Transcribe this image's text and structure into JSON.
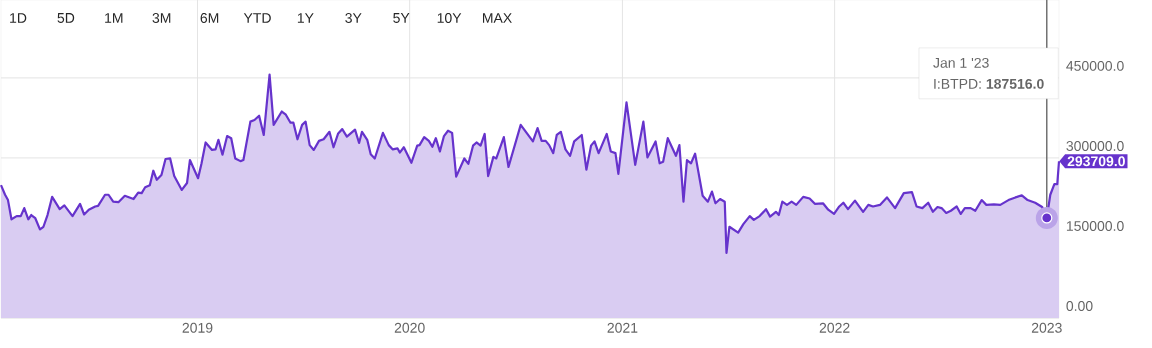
{
  "chart_data": {
    "type": "area",
    "x": [
      "2018-01-28",
      "2018-02-04",
      "2018-02-09",
      "2018-02-15",
      "2018-02-24",
      "2018-03-03",
      "2018-03-09",
      "2018-03-16",
      "2018-03-21",
      "2018-03-28",
      "2018-04-05",
      "2018-04-11",
      "2018-04-18",
      "2018-04-26",
      "2018-05-09",
      "2018-05-17",
      "2018-05-31",
      "2018-06-13",
      "2018-06-20",
      "2018-06-28",
      "2018-07-09",
      "2018-07-14",
      "2018-07-26",
      "2018-08-01",
      "2018-08-09",
      "2018-08-18",
      "2018-08-29",
      "2018-09-13",
      "2018-09-21",
      "2018-09-27",
      "2018-10-03",
      "2018-10-11",
      "2018-10-17",
      "2018-10-23",
      "2018-10-31",
      "2018-11-07",
      "2018-11-15",
      "2018-11-22",
      "2018-12-05",
      "2018-12-14",
      "2018-12-19",
      "2019-01-02",
      "2019-01-08",
      "2019-01-15",
      "2019-01-26",
      "2019-02-01",
      "2019-02-06",
      "2019-02-13",
      "2019-02-21",
      "2019-02-28",
      "2019-03-07",
      "2019-03-16",
      "2019-03-21",
      "2019-04-02",
      "2019-04-09",
      "2019-04-17",
      "2019-04-25",
      "2019-05-05",
      "2019-05-12",
      "2019-05-26",
      "2019-06-02",
      "2019-06-10",
      "2019-06-15",
      "2019-06-22",
      "2019-06-30",
      "2019-07-06",
      "2019-07-13",
      "2019-07-20",
      "2019-07-29",
      "2019-08-06",
      "2019-08-16",
      "2019-08-23",
      "2019-08-31",
      "2019-09-07",
      "2019-09-15",
      "2019-09-29",
      "2019-10-06",
      "2019-10-11",
      "2019-10-20",
      "2019-10-26",
      "2019-11-02",
      "2019-11-16",
      "2019-11-26",
      "2019-12-03",
      "2019-12-11",
      "2019-12-15",
      "2019-12-22",
      "2020-01-04",
      "2020-01-14",
      "2020-01-18",
      "2020-01-26",
      "2020-02-03",
      "2020-02-09",
      "2020-02-15",
      "2020-02-22",
      "2020-02-29",
      "2020-03-07",
      "2020-03-14",
      "2020-03-21",
      "2020-04-04",
      "2020-04-11",
      "2020-04-19",
      "2020-04-25",
      "2020-05-02",
      "2020-05-09",
      "2020-05-15",
      "2020-05-24",
      "2020-05-29",
      "2020-06-11",
      "2020-06-19",
      "2020-07-10",
      "2020-07-31",
      "2020-08-08",
      "2020-08-15",
      "2020-08-22",
      "2020-08-28",
      "2020-09-04",
      "2020-09-10",
      "2020-09-17",
      "2020-09-25",
      "2020-10-03",
      "2020-10-10",
      "2020-10-23",
      "2020-10-31",
      "2020-11-08",
      "2020-11-14",
      "2020-11-21",
      "2020-12-05",
      "2020-12-12",
      "2020-12-20",
      "2020-12-25",
      "2021-01-08",
      "2021-01-23",
      "2021-02-06",
      "2021-02-13",
      "2021-02-27",
      "2021-03-06",
      "2021-03-12",
      "2021-03-20",
      "2021-04-03",
      "2021-04-09",
      "2021-04-16",
      "2021-04-22",
      "2021-04-29",
      "2021-05-06",
      "2021-05-19",
      "2021-05-28",
      "2021-06-04",
      "2021-06-10",
      "2021-06-18",
      "2021-06-26",
      "2021-06-29",
      "2021-07-04",
      "2021-07-19",
      "2021-07-28",
      "2021-08-08",
      "2021-08-15",
      "2021-08-25",
      "2021-09-05",
      "2021-09-12",
      "2021-09-22",
      "2021-09-27",
      "2021-10-03",
      "2021-10-11",
      "2021-10-19",
      "2021-10-27",
      "2021-11-08",
      "2021-11-19",
      "2021-11-28",
      "2021-12-12",
      "2021-12-21",
      "2021-12-31",
      "2022-01-09",
      "2022-01-16",
      "2022-01-24",
      "2022-02-05",
      "2022-02-19",
      "2022-02-28",
      "2022-03-08",
      "2022-03-20",
      "2022-04-01",
      "2022-04-15",
      "2022-04-30",
      "2022-05-14",
      "2022-05-22",
      "2022-06-01",
      "2022-06-11",
      "2022-06-19",
      "2022-06-27",
      "2022-07-04",
      "2022-07-12",
      "2022-07-20",
      "2022-07-30",
      "2022-08-06",
      "2022-08-13",
      "2022-08-23",
      "2022-08-31",
      "2022-09-11",
      "2022-09-19",
      "2022-10-02",
      "2022-10-13",
      "2022-10-27",
      "2022-11-08",
      "2022-11-19",
      "2022-11-29",
      "2022-12-12",
      "2022-12-24",
      "2023-01-01",
      "2023-01-07",
      "2023-01-14",
      "2023-01-19",
      "2023-01-22"
    ],
    "series": [
      {
        "color": "#6633cc",
        "values": [
          249000,
          231000,
          221000,
          185000,
          191000,
          191000,
          206000,
          185000,
          193000,
          187000,
          166000,
          171000,
          193000,
          227000,
          204000,
          211000,
          191000,
          214000,
          194000,
          203000,
          209000,
          210000,
          231000,
          231000,
          218000,
          217000,
          229000,
          223000,
          235000,
          234000,
          245000,
          249000,
          276000,
          259000,
          268000,
          298000,
          299000,
          266000,
          240000,
          253000,
          296000,
          262000,
          290000,
          329000,
          315000,
          316000,
          334000,
          306000,
          341000,
          337000,
          299000,
          294000,
          296000,
          368000,
          371000,
          379000,
          343000,
          456000,
          362000,
          387000,
          381000,
          366000,
          366000,
          335000,
          362000,
          368000,
          324000,
          315000,
          332000,
          335000,
          349000,
          320000,
          346000,
          354000,
          340000,
          353000,
          328000,
          349000,
          334000,
          307000,
          299000,
          347000,
          324000,
          316000,
          318000,
          310000,
          320000,
          291000,
          323000,
          324000,
          339000,
          332000,
          321000,
          337000,
          312000,
          341000,
          351000,
          347000,
          265000,
          299000,
          289000,
          323000,
          329000,
          323000,
          345000,
          266000,
          302000,
          299000,
          339000,
          283000,
          362000,
          331000,
          356000,
          332000,
          332000,
          324000,
          309000,
          343000,
          349000,
          316000,
          304000,
          331000,
          343000,
          278000,
          323000,
          331000,
          309000,
          345000,
          312000,
          309000,
          270000,
          404000,
          287000,
          368000,
          301000,
          331000,
          290000,
          293000,
          337000,
          304000,
          324000,
          218000,
          296000,
          290000,
          308000,
          229000,
          218000,
          237000,
          215000,
          223000,
          218000,
          122000,
          171000,
          160000,
          176000,
          191000,
          184000,
          191000,
          204000,
          190000,
          199000,
          193000,
          218000,
          212000,
          218000,
          212000,
          227000,
          224000,
          214000,
          215000,
          203000,
          195000,
          209000,
          216000,
          204000,
          220000,
          199000,
          212000,
          209000,
          212000,
          226000,
          206000,
          234000,
          236000,
          209000,
          206000,
          216000,
          199000,
          208000,
          206000,
          197000,
          201000,
          209000,
          195000,
          206000,
          206000,
          201000,
          221000,
          212000,
          213000,
          212000,
          221000,
          226000,
          230000,
          221000,
          216000,
          208000,
          187516,
          231000,
          251000,
          251000,
          293709
        ]
      }
    ],
    "xlim": [
      "2018-01-28",
      "2023-01-22"
    ],
    "xticks": [
      "2019",
      "2020",
      "2021",
      "2022",
      "2023"
    ],
    "ylim": [
      0,
      596000
    ],
    "yticks": [
      {
        "value": 0,
        "label": "0.00"
      },
      {
        "value": 150000,
        "label": "150000.0"
      },
      {
        "value": 300000,
        "label": "300000.0"
      },
      {
        "value": 450000,
        "label": "450000.0"
      }
    ],
    "grid": true,
    "ref_lines": [
      {
        "axis": "x",
        "value": "2023-01-01",
        "color": "#555555"
      }
    ],
    "annotations": [
      "1D",
      "5D",
      "1M",
      "3M",
      "6M",
      "YTD",
      "1Y",
      "3Y",
      "5Y",
      "10Y",
      "MAX",
      {
        "text": "Jan 1 '23"
      },
      {
        "text": "I:BTPD: **187516.0**"
      },
      {
        "text": "293709.0",
        "x": "2023-01-22",
        "y": 293709
      }
    ]
  }
}
